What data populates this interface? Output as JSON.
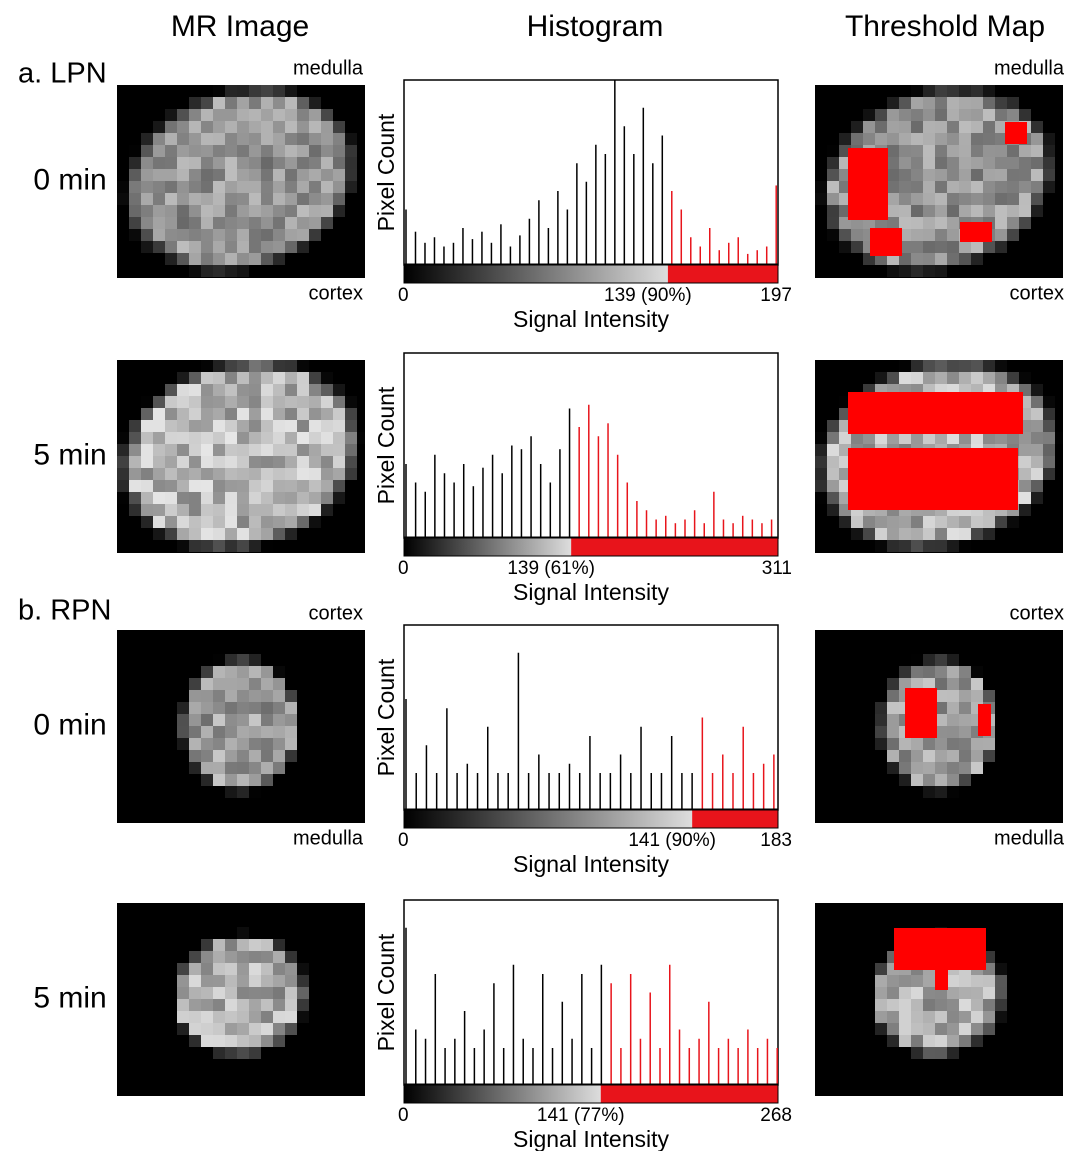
{
  "column_headers": [
    "MR Image",
    "Histogram",
    "Threshold Map"
  ],
  "groups": [
    {
      "label": "a. LPN",
      "rows": [
        {
          "time": "0 min",
          "mr_top": "medulla",
          "mr_bottom": "cortex",
          "map_top": "medulla",
          "map_bottom": "cortex",
          "histogram": {
            "type": "bar",
            "y_label": "Pixel Count",
            "x_label": "Signal Intensity",
            "below_color": "#000000",
            "above_color": "#e8141b",
            "xlim": [
              0,
              197
            ],
            "xticks": [
              0,
              {
                "value": 139,
                "label": "139 (90%)"
              },
              197
            ],
            "ylim": [
              0,
              100
            ],
            "x": [
              0,
              5,
              10,
              15,
              20,
              25,
              30,
              35,
              40,
              45,
              50,
              55,
              60,
              65,
              70,
              75,
              80,
              85,
              90,
              95,
              100,
              105,
              110,
              115,
              120,
              125,
              130,
              135,
              140,
              145,
              150,
              155,
              160,
              165,
              170,
              175,
              180,
              185,
              190,
              195
            ],
            "counts": [
              30,
              18,
              12,
              15,
              10,
              12,
              20,
              14,
              18,
              12,
              22,
              10,
              16,
              25,
              35,
              20,
              40,
              30,
              55,
              45,
              65,
              60,
              100,
              75,
              60,
              85,
              55,
              70,
              40,
              30,
              15,
              10,
              20,
              8,
              12,
              15,
              6,
              8,
              10,
              43
            ]
          }
        },
        {
          "time": "5 min",
          "histogram": {
            "type": "bar",
            "y_label": "Pixel Count",
            "x_label": "Signal Intensity",
            "below_color": "#000000",
            "above_color": "#e8141b",
            "xlim": [
              0,
              311
            ],
            "xticks": [
              0,
              {
                "value": 139,
                "label": "139 (61%)"
              },
              311
            ],
            "ylim": [
              0,
              100
            ],
            "x": [
              0,
              8,
              16,
              24,
              32,
              40,
              48,
              56,
              64,
              72,
              80,
              88,
              96,
              104,
              112,
              120,
              128,
              136,
              144,
              152,
              160,
              168,
              176,
              184,
              192,
              200,
              208,
              216,
              224,
              232,
              240,
              248,
              256,
              264,
              272,
              280,
              288,
              296,
              304
            ],
            "counts": [
              40,
              30,
              25,
              45,
              35,
              30,
              40,
              28,
              38,
              45,
              35,
              50,
              48,
              55,
              40,
              30,
              48,
              70,
              60,
              72,
              55,
              62,
              45,
              30,
              20,
              15,
              10,
              12,
              8,
              10,
              15,
              8,
              25,
              10,
              8,
              12,
              10,
              8,
              10
            ]
          }
        }
      ]
    },
    {
      "label": "b. RPN",
      "rows": [
        {
          "time": "0 min",
          "mr_top": "cortex",
          "mr_bottom": "medulla",
          "map_top": "cortex",
          "map_bottom": "medulla",
          "histogram": {
            "type": "bar",
            "y_label": "Pixel Count",
            "x_label": "Signal Intensity",
            "below_color": "#000000",
            "above_color": "#e8141b",
            "xlim": [
              0,
              183
            ],
            "xticks": [
              0,
              {
                "value": 141,
                "label": "141 (90%)"
              },
              183
            ],
            "ylim": [
              0,
              100
            ],
            "x": [
              0,
              5,
              10,
              15,
              20,
              25,
              30,
              35,
              40,
              45,
              50,
              55,
              60,
              65,
              70,
              75,
              80,
              85,
              90,
              95,
              100,
              105,
              110,
              115,
              120,
              125,
              130,
              135,
              140,
              145,
              150,
              155,
              160,
              165,
              170,
              175,
              180
            ],
            "counts": [
              60,
              20,
              35,
              20,
              55,
              20,
              25,
              20,
              45,
              20,
              20,
              85,
              20,
              30,
              20,
              20,
              25,
              20,
              40,
              20,
              20,
              30,
              20,
              45,
              20,
              20,
              40,
              20,
              20,
              50,
              20,
              30,
              20,
              45,
              20,
              25,
              30
            ]
          }
        },
        {
          "time": "5 min",
          "histogram": {
            "type": "bar",
            "y_label": "Pixel Count",
            "x_label": "Signal Intensity",
            "below_color": "#000000",
            "above_color": "#e8141b",
            "xlim": [
              0,
              268
            ],
            "xticks": [
              0,
              {
                "value": 141,
                "label": "141 (77%)"
              },
              268
            ],
            "ylim": [
              0,
              100
            ],
            "x": [
              0,
              7,
              14,
              21,
              28,
              35,
              42,
              49,
              56,
              63,
              70,
              77,
              84,
              91,
              98,
              105,
              112,
              119,
              126,
              133,
              140,
              147,
              154,
              161,
              168,
              175,
              182,
              189,
              196,
              203,
              210,
              217,
              224,
              231,
              238,
              245,
              252,
              259,
              266
            ],
            "counts": [
              85,
              30,
              25,
              60,
              20,
              25,
              40,
              20,
              30,
              55,
              20,
              65,
              25,
              20,
              60,
              20,
              45,
              25,
              60,
              20,
              65,
              55,
              20,
              60,
              25,
              50,
              20,
              65,
              30,
              20,
              25,
              45,
              20,
              25,
              20,
              30,
              20,
              25,
              20
            ]
          }
        }
      ]
    }
  ]
}
